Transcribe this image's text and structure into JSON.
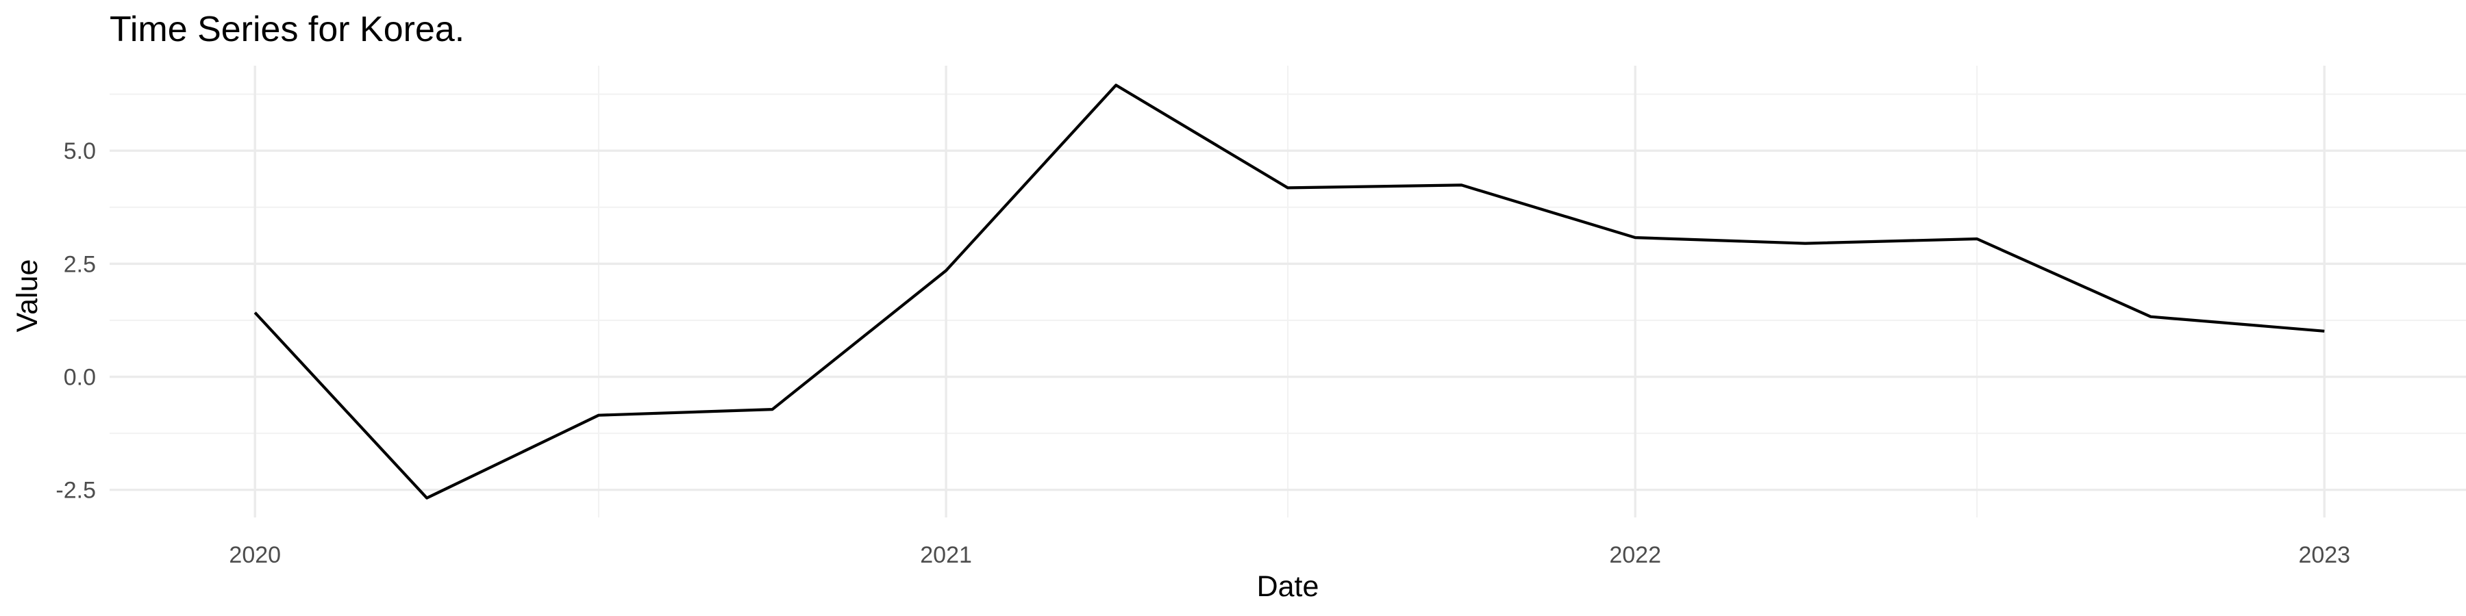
{
  "chart_data": {
    "type": "line",
    "title": "Time Series for Korea.",
    "xlabel": "Date",
    "ylabel": "Value",
    "x": [
      "2020-01-01",
      "2020-04-01",
      "2020-07-01",
      "2020-10-01",
      "2021-01-01",
      "2021-04-01",
      "2021-07-01",
      "2021-10-01",
      "2022-01-01",
      "2022-04-01",
      "2022-07-01",
      "2022-10-01",
      "2023-01-01"
    ],
    "series": [
      {
        "values": [
          1.42,
          -2.68,
          -0.85,
          -0.72,
          2.35,
          6.45,
          4.18,
          4.24,
          3.08,
          2.95,
          3.05,
          1.33,
          1.01
        ],
        "color": "#000000"
      }
    ],
    "xlim": [
      "2019-10-16",
      "2023-03-17"
    ],
    "ylim": [
      -3.11,
      6.88
    ],
    "x_ticks": [
      "2020-01-01",
      "2021-01-01",
      "2022-01-01",
      "2023-01-01"
    ],
    "x_tick_labels": [
      "2020",
      "2021",
      "2022",
      "2023"
    ],
    "x_minor_ticks": [
      "2020-07-01",
      "2021-07-01",
      "2022-07-01"
    ],
    "y_ticks": [
      -2.5,
      0.0,
      2.5,
      5.0
    ],
    "y_tick_labels": [
      "-2.5",
      "0.0",
      "2.5",
      "5.0"
    ],
    "y_minor_ticks": [
      -1.25,
      1.25,
      3.75,
      6.25
    ],
    "grid": true,
    "legend": "none",
    "background": "#ffffff"
  }
}
